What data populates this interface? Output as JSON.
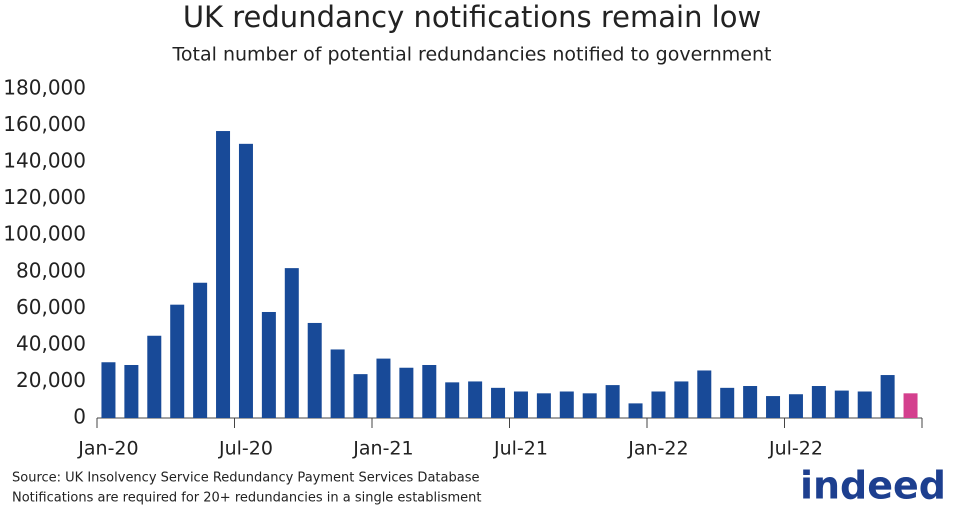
{
  "chart_data": {
    "type": "bar",
    "title": "UK redundancy notifications remain low",
    "subtitle": "Total number of potential redundancies notified to government",
    "categories": [
      "Jan-20",
      null,
      null,
      null,
      null,
      null,
      "Jul-20",
      null,
      null,
      null,
      null,
      null,
      "Jan-21",
      null,
      null,
      null,
      null,
      null,
      "Jul-21",
      null,
      null,
      null,
      null,
      null,
      "Jan-22",
      null,
      null,
      null,
      null,
      null,
      "Jul-22",
      null,
      null,
      null,
      null,
      null
    ],
    "values": [
      30500,
      29000,
      45000,
      62000,
      74000,
      157000,
      150000,
      58000,
      82000,
      52000,
      37500,
      24000,
      32500,
      27500,
      29000,
      19500,
      20000,
      16500,
      14500,
      13500,
      14500,
      13500,
      18000,
      8000,
      14500,
      20000,
      26000,
      16500,
      17500,
      12000,
      13000,
      17500,
      15000,
      14500,
      23500,
      13500
    ],
    "colors": [
      "#184a98",
      "#184a98",
      "#184a98",
      "#184a98",
      "#184a98",
      "#184a98",
      "#184a98",
      "#184a98",
      "#184a98",
      "#184a98",
      "#184a98",
      "#184a98",
      "#184a98",
      "#184a98",
      "#184a98",
      "#184a98",
      "#184a98",
      "#184a98",
      "#184a98",
      "#184a98",
      "#184a98",
      "#184a98",
      "#184a98",
      "#184a98",
      "#184a98",
      "#184a98",
      "#184a98",
      "#184a98",
      "#184a98",
      "#184a98",
      "#184a98",
      "#184a98",
      "#184a98",
      "#184a98",
      "#184a98",
      "#d4408e"
    ],
    "ylim": [
      0,
      180000
    ],
    "yticks": [
      0,
      {
        "value": 20000,
        "label": "20,000"
      },
      {
        "value": 40000,
        "label": "40,000"
      },
      {
        "value": 60000,
        "label": "60,000"
      },
      {
        "value": 80000,
        "label": "80,000"
      },
      {
        "value": 100000,
        "label": "100,000"
      },
      {
        "value": 120000,
        "label": "120,000"
      },
      {
        "value": 140000,
        "label": "140,000"
      },
      {
        "value": 160000,
        "label": "160,000"
      },
      {
        "value": 180000,
        "label": "180,000"
      }
    ],
    "grid": false
  },
  "footer": {
    "source": "Source: UK Insolvency Service Redundancy Payment Services Database",
    "note": "Notifications are required for 20+ redundancies in a single establisment",
    "logo": "indeed"
  }
}
